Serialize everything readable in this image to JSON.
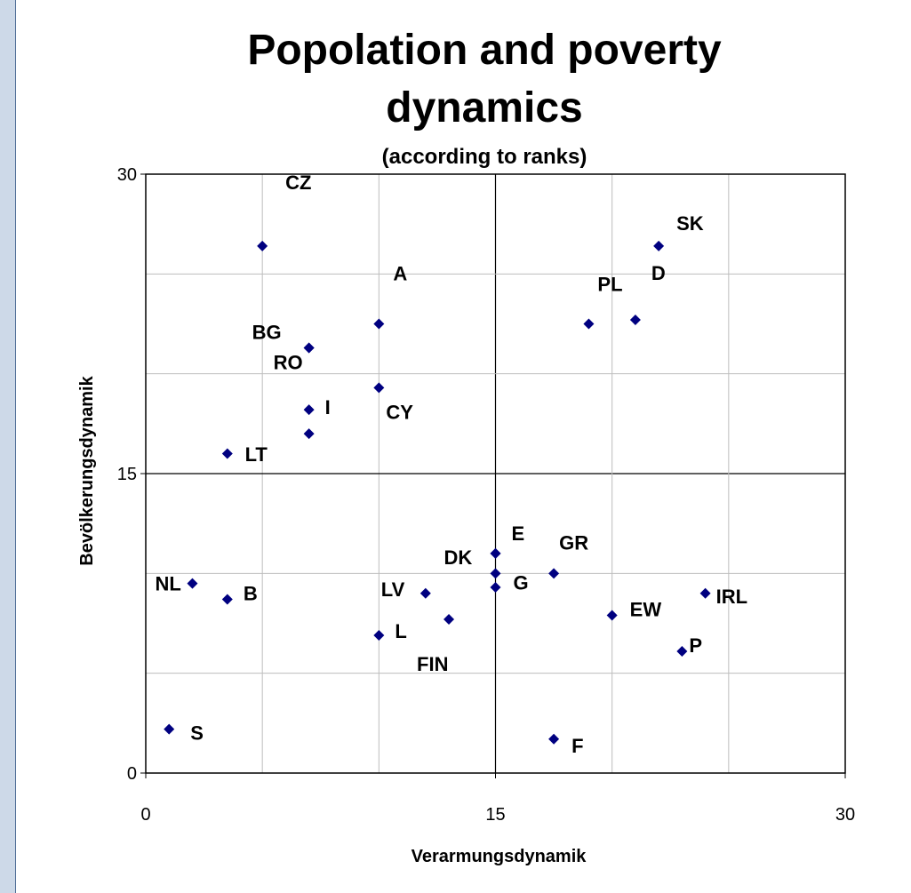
{
  "chart_data": {
    "type": "scatter",
    "title": "Popolation and poverty dynamics",
    "subtitle": "(according to ranks)",
    "xlabel": "Verarmungsdynamik",
    "ylabel": "Bevölkerungsdynamik",
    "xlim": [
      0,
      30
    ],
    "ylim": [
      0,
      30
    ],
    "xticks": [
      "0",
      "15",
      "30"
    ],
    "yticks": [
      "0",
      "15",
      "30"
    ],
    "grid": true,
    "marker_color": "#000080",
    "points": [
      {
        "label": "CZ",
        "x": 5,
        "y": 26.4
      },
      {
        "label": "SK",
        "x": 22,
        "y": 26.4
      },
      {
        "label": "A",
        "x": 10,
        "y": 22.5
      },
      {
        "label": "PL",
        "x": 19,
        "y": 22.5
      },
      {
        "label": "D",
        "x": 21,
        "y": 22.7
      },
      {
        "label": "BG",
        "x": 7,
        "y": 21.3
      },
      {
        "label": "RO",
        "x": 7,
        "y": 21.3
      },
      {
        "label": "CY",
        "x": 10,
        "y": 19.3
      },
      {
        "label": "I",
        "x": 7,
        "y": 18.2
      },
      {
        "label": "LT",
        "x": 7,
        "y": 17.0
      },
      {
        "label": "",
        "x": 3.5,
        "y": 16.0
      },
      {
        "label": "DK",
        "x": 15,
        "y": 11.0
      },
      {
        "label": "E",
        "x": 15,
        "y": 11.0
      },
      {
        "label": "G",
        "x": 15,
        "y": 10.0
      },
      {
        "label": "",
        "x": 15,
        "y": 9.3
      },
      {
        "label": "GR",
        "x": 17.5,
        "y": 10.0
      },
      {
        "label": "NL",
        "x": 2,
        "y": 9.5
      },
      {
        "label": "B",
        "x": 3.5,
        "y": 8.7
      },
      {
        "label": "LV",
        "x": 12,
        "y": 9.0
      },
      {
        "label": "FIN",
        "x": 13,
        "y": 7.7
      },
      {
        "label": "L",
        "x": 10,
        "y": 6.9
      },
      {
        "label": "EW",
        "x": 20,
        "y": 7.9
      },
      {
        "label": "IRL",
        "x": 24,
        "y": 9.0
      },
      {
        "label": "P",
        "x": 23,
        "y": 6.1
      },
      {
        "label": "S",
        "x": 1,
        "y": 2.2
      },
      {
        "label": "F",
        "x": 17.5,
        "y": 1.7
      }
    ]
  }
}
